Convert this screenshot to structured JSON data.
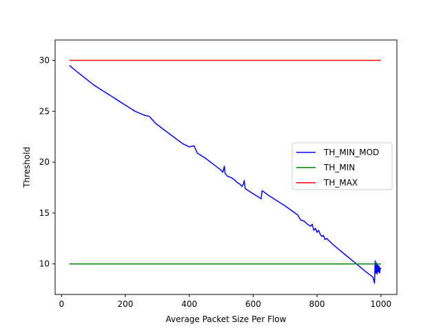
{
  "chart_data": {
    "type": "line",
    "title": "",
    "xlabel": "Average Packet Size Per Flow",
    "ylabel": "Threshold",
    "xlim": [
      -20,
      1050
    ],
    "ylim": [
      7,
      32
    ],
    "xticks": [
      0,
      200,
      400,
      600,
      800,
      1000
    ],
    "yticks": [
      10,
      15,
      20,
      25,
      30
    ],
    "xtick_labels": [
      "0",
      "200",
      "400",
      "600",
      "800",
      "1000"
    ],
    "ytick_labels": [
      "10",
      "15",
      "20",
      "25",
      "30"
    ],
    "grid": false,
    "legend_position": "center-right",
    "series": [
      {
        "name": "TH_MIN_MOD",
        "color": "#0000ff",
        "x": [
          25,
          40,
          60,
          80,
          100,
          120,
          140,
          160,
          180,
          200,
          230,
          260,
          275,
          295,
          320,
          350,
          380,
          400,
          415,
          425,
          450,
          475,
          500,
          505,
          510,
          512,
          520,
          530,
          540,
          550,
          560,
          565,
          570,
          572,
          575,
          600,
          625,
          628,
          650,
          700,
          740,
          745,
          750,
          760,
          770,
          775,
          780,
          785,
          790,
          795,
          800,
          805,
          810,
          815,
          820,
          825,
          830,
          840,
          850,
          900,
          950,
          975,
          980,
          982,
          984,
          986,
          988,
          990,
          992,
          994,
          996,
          998,
          1000
        ],
        "y": [
          29.5,
          29.1,
          28.6,
          28.1,
          27.6,
          27.2,
          26.8,
          26.4,
          26.0,
          25.6,
          25.0,
          24.6,
          24.5,
          23.8,
          23.2,
          22.5,
          21.8,
          21.5,
          21.6,
          20.9,
          20.4,
          19.8,
          19.2,
          19.0,
          19.6,
          18.9,
          18.6,
          18.5,
          18.3,
          18.0,
          17.8,
          17.6,
          17.9,
          18.2,
          17.4,
          16.9,
          16.4,
          17.2,
          16.7,
          15.7,
          14.8,
          14.5,
          14.3,
          14.2,
          13.9,
          13.8,
          13.7,
          13.9,
          13.3,
          13.5,
          13.1,
          13.3,
          12.9,
          12.7,
          12.8,
          12.4,
          12.5,
          12.2,
          11.9,
          10.6,
          9.3,
          8.7,
          8.1,
          10.3,
          9.1,
          10.1,
          9.0,
          9.9,
          9.2,
          9.8,
          9.1,
          9.6,
          9.5
        ]
      },
      {
        "name": "TH_MIN",
        "color": "#008000",
        "x": [
          25,
          1000
        ],
        "y": [
          10,
          10
        ]
      },
      {
        "name": "TH_MAX",
        "color": "#ff0000",
        "x": [
          25,
          1000
        ],
        "y": [
          30,
          30
        ]
      }
    ]
  }
}
